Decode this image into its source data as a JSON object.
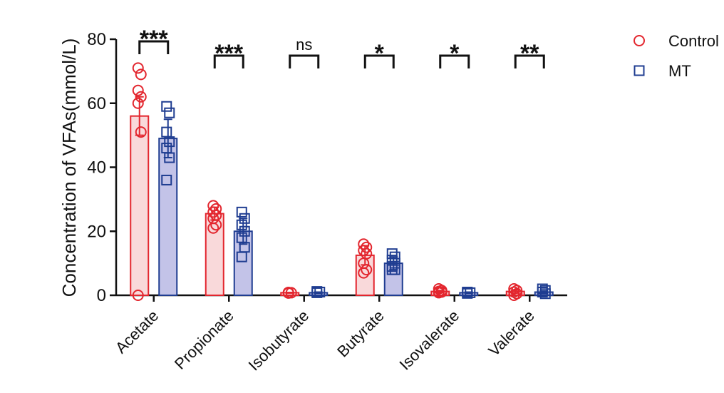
{
  "chart_data": {
    "type": "bar",
    "y_label": "Concentration of VFAs(mmol/L)",
    "categories": [
      "Acetate",
      "Propionate",
      "Isobutyrate",
      "Butyrate",
      "Isovalerate",
      "Valerate"
    ],
    "series": [
      {
        "name": "Control",
        "color": "#e3262e",
        "fill": "#f9d9da",
        "marker": "circle",
        "values": [
          56,
          25.5,
          0.8,
          12.5,
          1.2,
          1.2
        ],
        "errors": [
          6,
          2,
          0.1,
          3,
          0.3,
          0.5
        ],
        "points": [
          [
            71,
            69,
            64,
            62,
            60,
            51,
            0
          ],
          [
            28,
            27,
            26,
            25,
            24,
            22,
            21
          ],
          [
            0.9,
            0.8,
            0.7
          ],
          [
            16,
            15,
            14,
            13,
            10,
            8,
            7
          ],
          [
            2,
            1.5,
            1.2,
            1,
            0.8
          ],
          [
            2,
            1.5,
            1,
            0.5,
            0
          ]
        ]
      },
      {
        "name": "MT",
        "color": "#1f3d91",
        "fill": "#c3c3e8",
        "marker": "square",
        "values": [
          49,
          20,
          0.8,
          10,
          0.8,
          1
        ],
        "errors": [
          6,
          4,
          0.2,
          2,
          0.2,
          0.4
        ],
        "points": [
          [
            59,
            57,
            51,
            48,
            46,
            43,
            36
          ],
          [
            26,
            24,
            22,
            20,
            18,
            15,
            12
          ],
          [
            1.2,
            1,
            0.8
          ],
          [
            13,
            12,
            11,
            10,
            9,
            8,
            8
          ],
          [
            1,
            0.8,
            0.6
          ],
          [
            2,
            1.5,
            1,
            0.5
          ]
        ]
      }
    ],
    "significance": [
      "***",
      "***",
      "ns",
      "*",
      "*",
      "**"
    ],
    "ylim": [
      0,
      80
    ],
    "yticks": [
      0,
      20,
      40,
      60,
      80
    ],
    "legend": "top-right"
  }
}
